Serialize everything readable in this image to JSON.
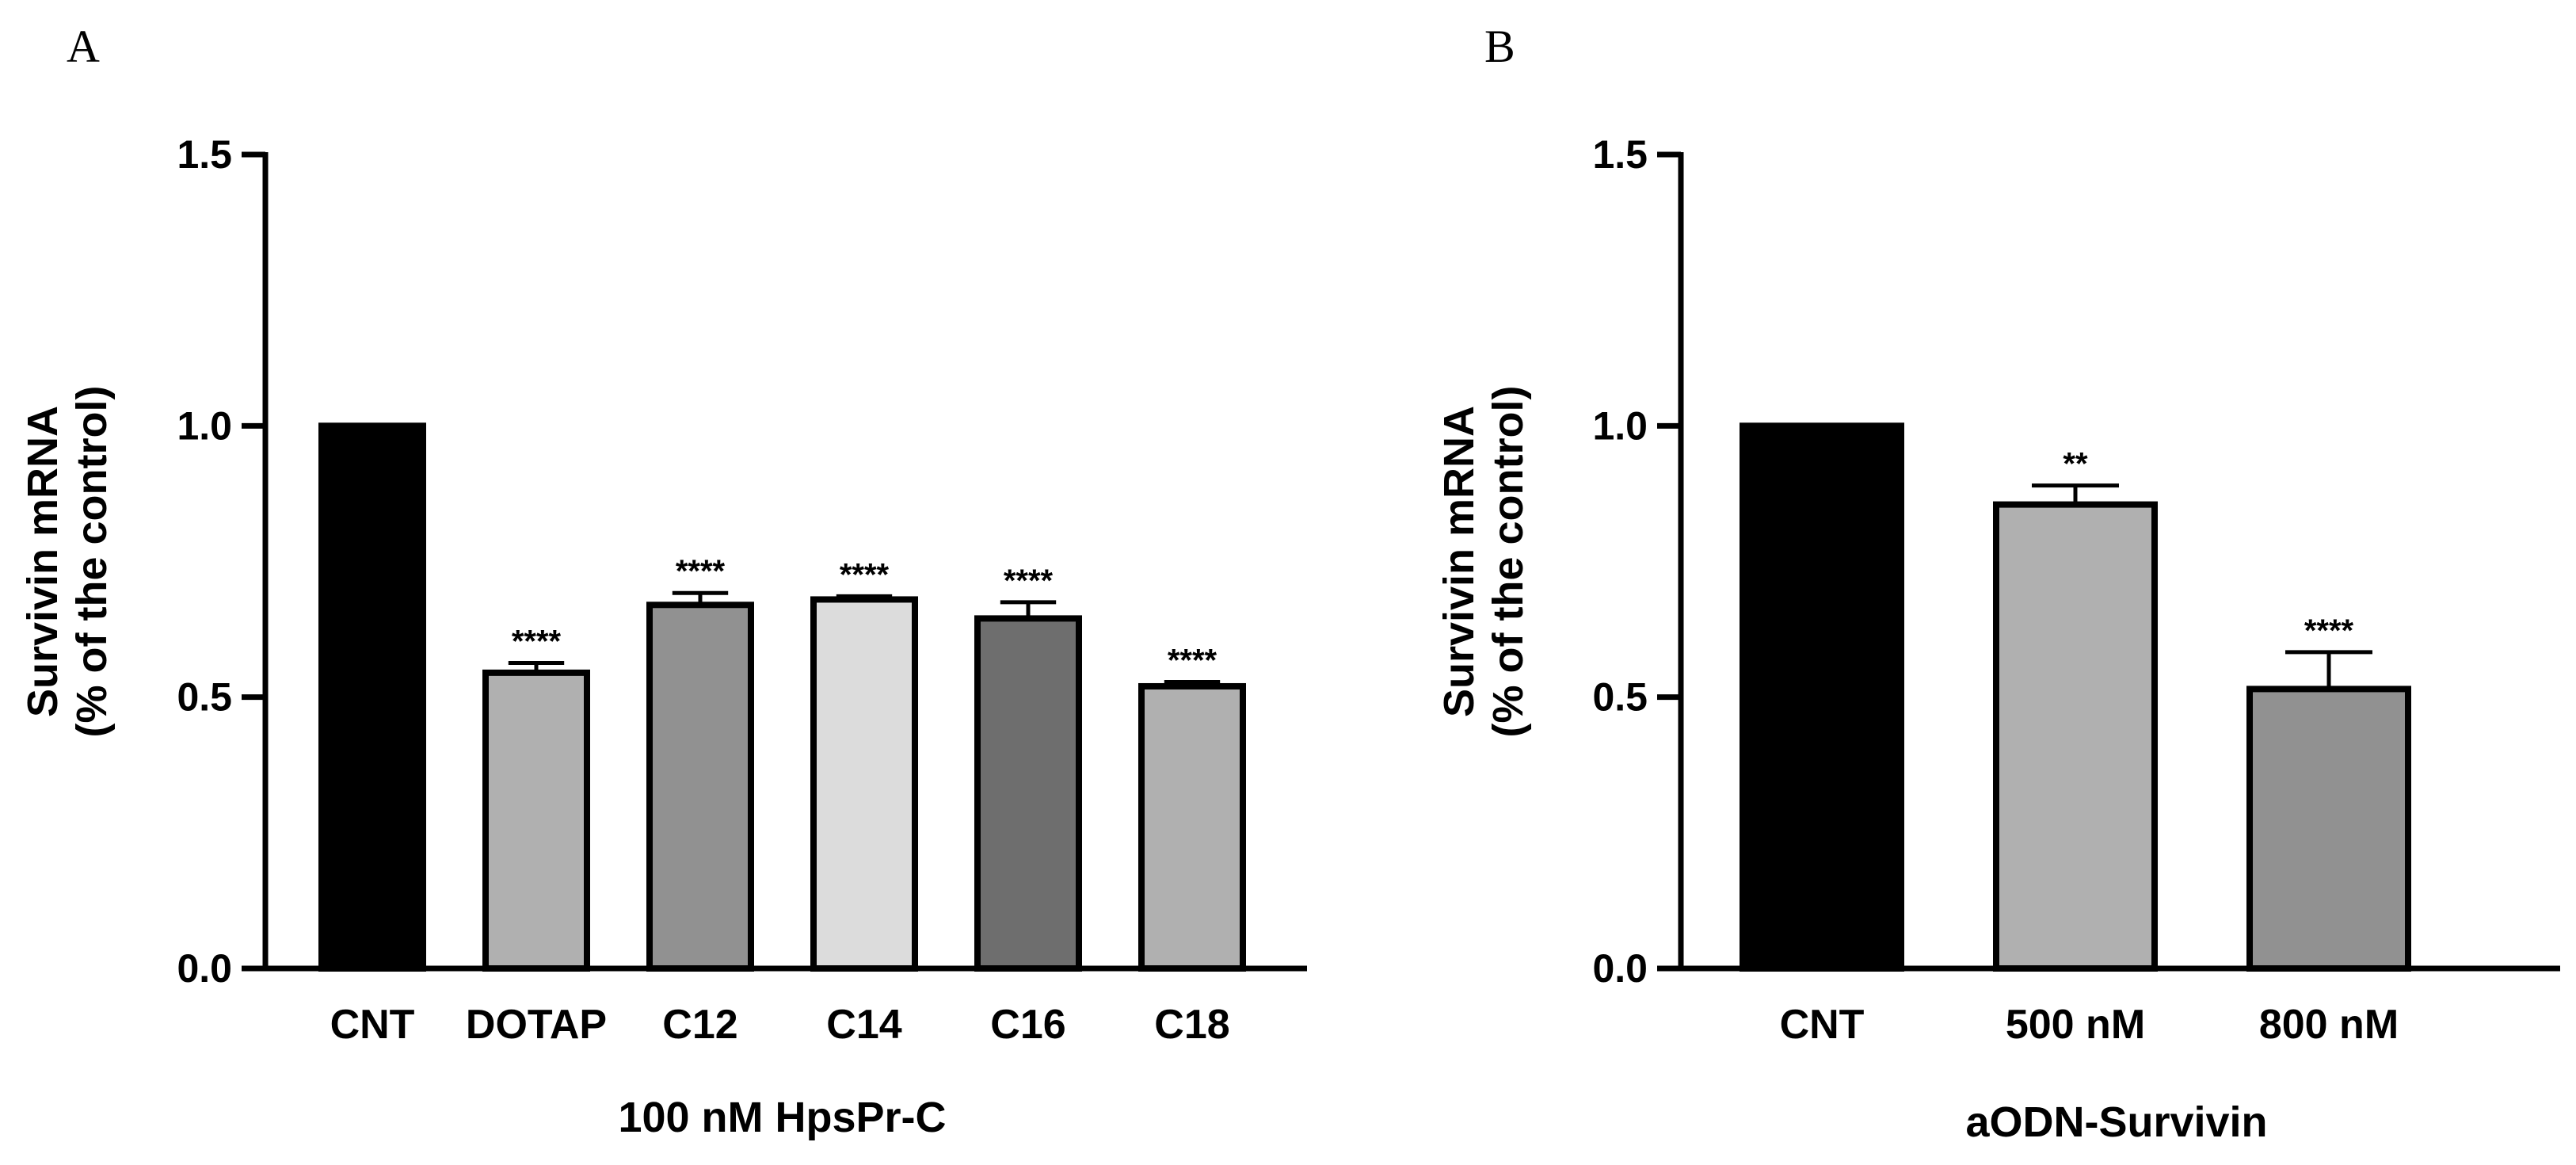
{
  "chart_data": [
    {
      "panel": "A",
      "type": "bar",
      "title": "",
      "xlabel": "100 nM HpsPr-C",
      "ylabel_line1": "Survivin mRNA",
      "ylabel_line2": "(% of the control)",
      "ylim": [
        0,
        1.5
      ],
      "yticks": [
        "0.0",
        "0.5",
        "1.0",
        "1.5"
      ],
      "categories": [
        "CNT",
        "DOTAP",
        "C12",
        "C14",
        "C16",
        "C18"
      ],
      "values": [
        1.0,
        0.545,
        0.67,
        0.68,
        0.645,
        0.52
      ],
      "errors": [
        0,
        0.018,
        0.022,
        0.006,
        0.03,
        0.008
      ],
      "significance": [
        "",
        "****",
        "****",
        "****",
        "****",
        "****"
      ],
      "colors": [
        "#000000",
        "#b0b0b0",
        "#919191",
        "#dcdcdc",
        "#6e6e6e",
        "#b0b0b0"
      ]
    },
    {
      "panel": "B",
      "type": "bar",
      "title": "",
      "xlabel": "aODN-Survivin",
      "ylabel_line1": "Survivin mRNA",
      "ylabel_line2": "(% of the control)",
      "ylim": [
        0,
        1.5
      ],
      "yticks": [
        "0.0",
        "0.5",
        "1.0",
        "1.5"
      ],
      "categories": [
        "CNT",
        "500 nM",
        "800 nM"
      ],
      "values": [
        1.0,
        0.855,
        0.515
      ],
      "errors": [
        0,
        0.035,
        0.068
      ],
      "significance": [
        "",
        "**",
        "****"
      ],
      "colors": [
        "#000000",
        "#b0b0b0",
        "#919191"
      ]
    }
  ]
}
